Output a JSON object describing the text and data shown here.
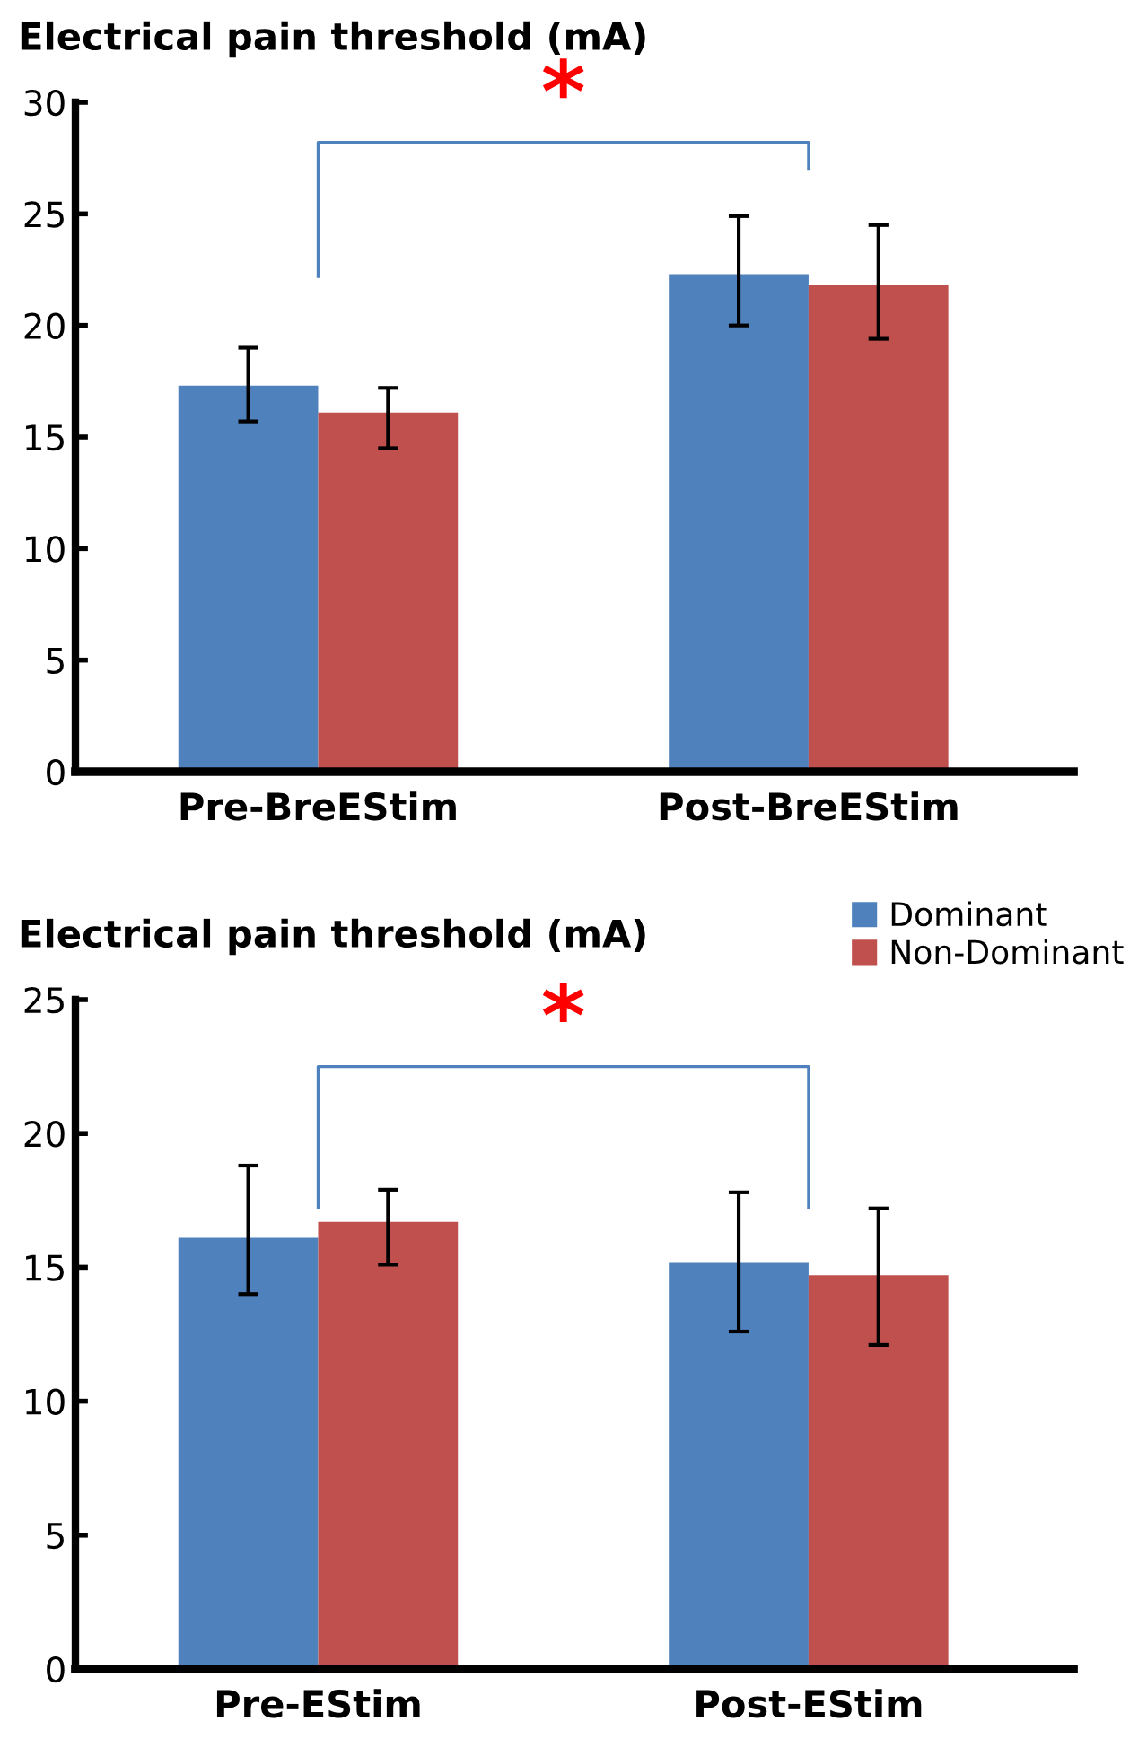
{
  "chart_data": [
    {
      "type": "bar",
      "title": "Electrical pain threshold (mA)",
      "categories": [
        "Pre-BreEStim",
        "Post-BreEStim"
      ],
      "series": [
        {
          "color": "#4f81bd",
          "values": [
            17.3,
            22.3
          ],
          "errors": [
            [
              15.7,
              19.0
            ],
            [
              20.0,
              24.9
            ]
          ]
        },
        {
          "color": "#c0504d",
          "values": [
            16.1,
            21.8
          ],
          "errors": [
            [
              14.5,
              17.2
            ],
            [
              19.4,
              24.5
            ]
          ]
        }
      ],
      "ylim": [
        0,
        30
      ],
      "yticks": [
        0,
        5,
        10,
        15,
        20,
        25,
        30
      ],
      "grid": false,
      "legend": false,
      "annotations": [
        "*"
      ]
    },
    {
      "type": "bar",
      "title": "Electrical pain threshold (mA)",
      "categories": [
        "Pre-EStim",
        "Post-EStim"
      ],
      "series": [
        {
          "name": "Dominant",
          "color": "#4f81bd",
          "values": [
            16.1,
            15.2
          ],
          "errors": [
            [
              14.0,
              18.8
            ],
            [
              12.6,
              17.8
            ]
          ]
        },
        {
          "name": "Non-Dominant",
          "color": "#c0504d",
          "values": [
            16.7,
            14.7
          ],
          "errors": [
            [
              15.1,
              17.9
            ],
            [
              12.1,
              17.2
            ]
          ]
        }
      ],
      "ylim": [
        0,
        25
      ],
      "yticks": [
        0,
        5,
        10,
        15,
        20,
        25
      ],
      "grid": false,
      "legend": "top right",
      "annotations": [
        "*"
      ]
    }
  ]
}
